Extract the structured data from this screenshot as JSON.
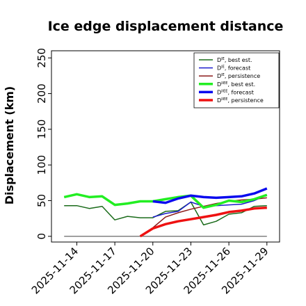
{
  "chart_data": {
    "type": "line",
    "title": "Ice edge displacement distance",
    "xlabel": "",
    "ylabel": "Displacement (km)",
    "x_range": [
      "2025-11-12",
      "2025-11-30"
    ],
    "ylim": [
      -8,
      260
    ],
    "y_ticks": [
      0,
      50,
      100,
      150,
      200,
      250
    ],
    "x_ticks": [
      {
        "date": "2025-11-14",
        "label": "2025-11-14",
        "color": "#000000"
      },
      {
        "date": "2025-11-17",
        "label": "2025-11-17",
        "color": "#000000"
      },
      {
        "date": "2025-11-20",
        "label": "2025-11-20",
        "color": "#1e7b1e"
      },
      {
        "date": "2025-11-23",
        "label": "2025-11-23",
        "color": "#000000"
      },
      {
        "date": "2025-11-26",
        "label": "2025-11-26",
        "color": "#000000"
      },
      {
        "date": "2025-11-29",
        "label": "2025-11-29",
        "color": "#000000"
      }
    ],
    "grid": false,
    "legend_position": "top-right",
    "baseline": {
      "y": 0,
      "x": [
        "2025-11-13",
        "2025-11-29"
      ],
      "color": "#808080"
    },
    "series": [
      {
        "name": "D^{IE}, best est.",
        "sym": "D",
        "sup": "IE",
        "suffix": ", best est.",
        "color": "#1a6b1a",
        "width": 1.5,
        "x": [
          "2025-11-13",
          "2025-11-14",
          "2025-11-15",
          "2025-11-16",
          "2025-11-17",
          "2025-11-18",
          "2025-11-19",
          "2025-11-20",
          "2025-11-21",
          "2025-11-22",
          "2025-11-23",
          "2025-11-24",
          "2025-11-25",
          "2025-11-26",
          "2025-11-27",
          "2025-11-28",
          "2025-11-29"
        ],
        "values": [
          43,
          43,
          39,
          42,
          23,
          28,
          26,
          26,
          35,
          36,
          48,
          16,
          21,
          31,
          33,
          42,
          43
        ]
      },
      {
        "name": "D^{IE}, forecast",
        "sym": "D",
        "sup": "IE",
        "suffix": ", forecast",
        "color": "#1c1ccc",
        "width": 1.5,
        "x": [
          "2025-11-20",
          "2025-11-21",
          "2025-11-22",
          "2025-11-23",
          "2025-11-24",
          "2025-11-25",
          "2025-11-26",
          "2025-11-27",
          "2025-11-28",
          "2025-11-29"
        ],
        "values": [
          27,
          32,
          35,
          48,
          42,
          43,
          44,
          45,
          50,
          58
        ]
      },
      {
        "name": "D^{IE}, persistence",
        "sym": "D",
        "sup": "IE",
        "suffix": ", persistence",
        "color": "#8b1a1a",
        "width": 1.5,
        "x": [
          "2025-11-19",
          "2025-11-20",
          "2025-11-21",
          "2025-11-22",
          "2025-11-23",
          "2025-11-24",
          "2025-11-25",
          "2025-11-26",
          "2025-11-27",
          "2025-11-28",
          "2025-11-29"
        ],
        "values": [
          0,
          12,
          27,
          33,
          38,
          42,
          46,
          49,
          51,
          52,
          54
        ]
      },
      {
        "name": "D^{IIEE}, best est.",
        "sym": "D",
        "sup": "IIEE",
        "suffix": ", best est.",
        "color": "#22ee22",
        "width": 3.5,
        "x": [
          "2025-11-13",
          "2025-11-14",
          "2025-11-15",
          "2025-11-16",
          "2025-11-17",
          "2025-11-18",
          "2025-11-19",
          "2025-11-20",
          "2025-11-21",
          "2025-11-22",
          "2025-11-23",
          "2025-11-24",
          "2025-11-25",
          "2025-11-26",
          "2025-11-27",
          "2025-11-28",
          "2025-11-29"
        ],
        "values": [
          55,
          59,
          55,
          56,
          44,
          46,
          49,
          49,
          52,
          55,
          57,
          40,
          44,
          50,
          48,
          52,
          58
        ]
      },
      {
        "name": "D^{IIEE}, forecast",
        "sym": "D",
        "sup": "IIEE",
        "suffix": ", forecast",
        "color": "#0a0aee",
        "width": 3.5,
        "x": [
          "2025-11-20",
          "2025-11-21",
          "2025-11-22",
          "2025-11-23",
          "2025-11-24",
          "2025-11-25",
          "2025-11-26",
          "2025-11-27",
          "2025-11-28",
          "2025-11-29"
        ],
        "values": [
          49,
          47,
          53,
          57,
          55,
          54,
          55,
          56,
          60,
          67
        ]
      },
      {
        "name": "D^{IIEE}, persistence",
        "sym": "D",
        "sup": "IIEE",
        "suffix": ", persistence",
        "color": "#ee1111",
        "width": 3.5,
        "x": [
          "2025-11-19",
          "2025-11-20",
          "2025-11-21",
          "2025-11-22",
          "2025-11-23",
          "2025-11-24",
          "2025-11-25",
          "2025-11-26",
          "2025-11-27",
          "2025-11-28",
          "2025-11-29"
        ],
        "values": [
          0,
          11,
          17,
          21,
          24,
          27,
          30,
          34,
          36,
          39,
          40
        ]
      }
    ]
  }
}
